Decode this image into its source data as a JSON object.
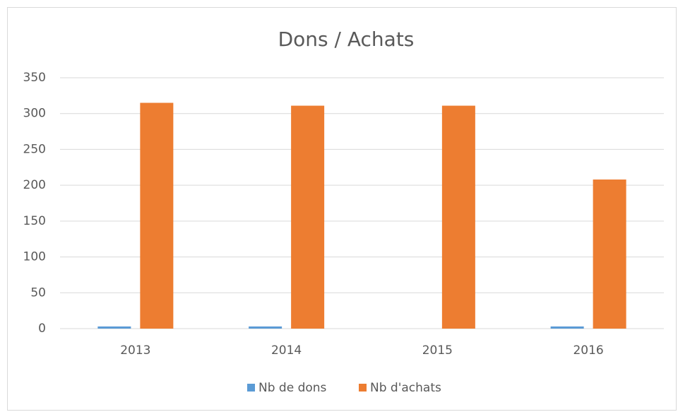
{
  "chart_data": {
    "type": "bar",
    "title": "Dons / Achats",
    "categories": [
      "2013",
      "2014",
      "2015",
      "2016"
    ],
    "series": [
      {
        "name": "Nb de dons",
        "color": "#5b9bd5",
        "values": [
          3,
          3,
          0,
          3
        ]
      },
      {
        "name": "Nb d'achats",
        "color": "#ed7d31",
        "values": [
          315,
          311,
          311,
          208
        ]
      }
    ],
    "ylim": [
      0,
      350
    ],
    "yticks": [
      0,
      50,
      100,
      150,
      200,
      250,
      300,
      350
    ],
    "grid": true,
    "legend": "bottom"
  }
}
